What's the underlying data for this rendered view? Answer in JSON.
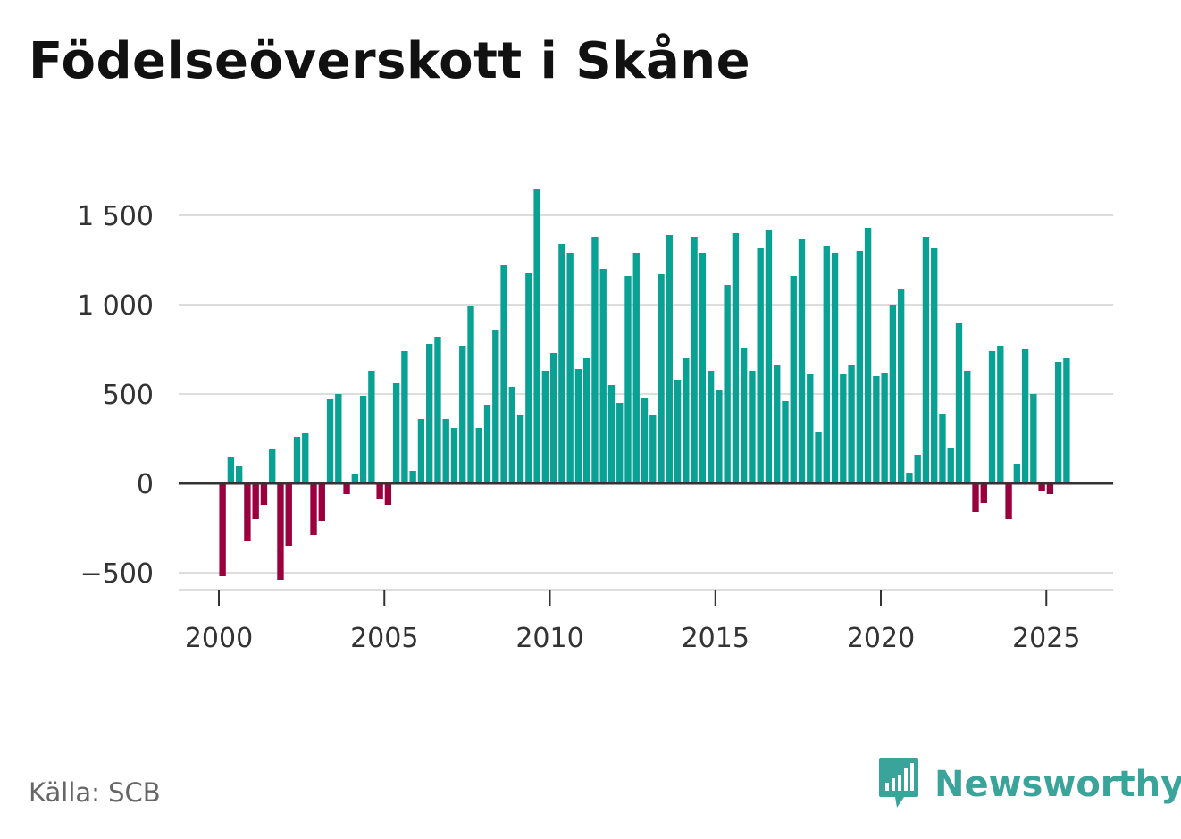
{
  "title": "Födelseöverskott i Skåne",
  "source": "Källa: SCB",
  "brand": {
    "name": "Newsworthy",
    "icon": "newsworthy-logo-icon"
  },
  "colors": {
    "positive": "#0aa195",
    "negative": "#99003d",
    "grid": "#dddddd",
    "zero": "#333333",
    "brand": "#3aa39a"
  },
  "chart_data": {
    "type": "bar",
    "title": "Födelseöverskott i Skåne",
    "xlabel": "",
    "ylabel": "",
    "frequency": "quarterly",
    "x_start": 2000.0,
    "x_step": 0.25,
    "xlim": [
      1999.75,
      2026.75
    ],
    "ylim": [
      -550,
      1750
    ],
    "yticks": [
      -500,
      0,
      500,
      1000,
      1500
    ],
    "ytick_labels": [
      "−500",
      "0",
      "500",
      "1 000",
      "1 500"
    ],
    "xticks": [
      2000,
      2005,
      2010,
      2015,
      2020,
      2025
    ],
    "xtick_labels": [
      "2000",
      "2005",
      "2010",
      "2015",
      "2020",
      "2025"
    ],
    "grid": true,
    "values": [
      -520,
      150,
      100,
      -320,
      -200,
      -120,
      190,
      -540,
      -350,
      260,
      280,
      -290,
      -210,
      470,
      500,
      -60,
      50,
      490,
      630,
      -90,
      -120,
      560,
      740,
      70,
      360,
      780,
      820,
      360,
      310,
      770,
      990,
      310,
      440,
      860,
      1220,
      540,
      380,
      1180,
      1650,
      630,
      730,
      1340,
      1290,
      640,
      700,
      1380,
      1200,
      550,
      450,
      1160,
      1290,
      480,
      380,
      1170,
      1390,
      580,
      700,
      1380,
      1290,
      630,
      520,
      1110,
      1400,
      760,
      630,
      1320,
      1420,
      660,
      460,
      1160,
      1370,
      610,
      290,
      1330,
      1290,
      610,
      660,
      1300,
      1430,
      600,
      620,
      1000,
      1090,
      60,
      160,
      1380,
      1320,
      390,
      200,
      900,
      630,
      -160,
      -110,
      740,
      770,
      -200,
      110,
      750,
      500,
      -40,
      -60,
      680,
      700
    ]
  }
}
